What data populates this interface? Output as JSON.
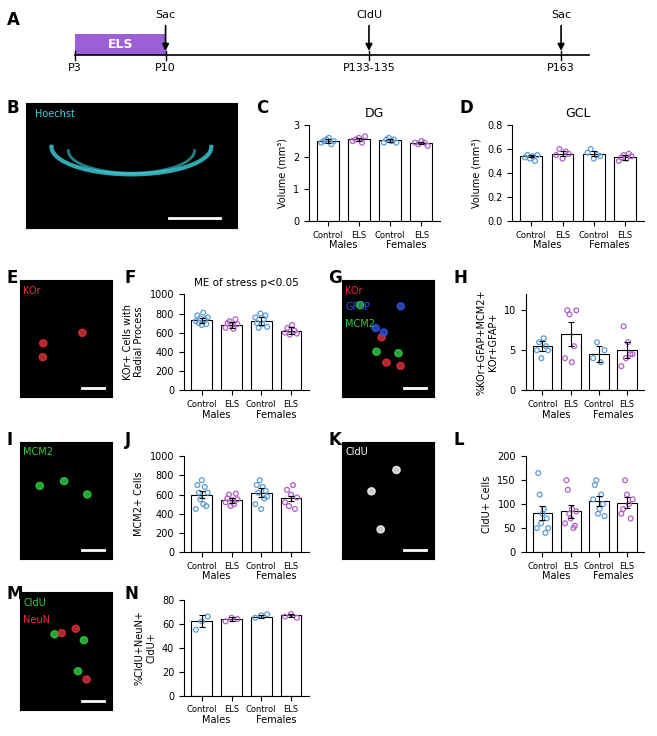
{
  "panel_labels": [
    "A",
    "B",
    "C",
    "D",
    "E",
    "F",
    "G",
    "H",
    "I",
    "J",
    "K",
    "L",
    "M",
    "N"
  ],
  "timeline": {
    "stage": {
      "text": "ELS",
      "color": "#9b5fd6"
    },
    "ticks": [
      "P3",
      "P10",
      "P133-135",
      "P163"
    ],
    "events": [
      {
        "text": "Sac",
        "at": "P10"
      },
      {
        "text": "CldU",
        "at": "P133-135"
      },
      {
        "text": "Sac",
        "at": "P163"
      }
    ]
  },
  "images": [
    {
      "channels": [
        {
          "text": "Hoechst",
          "color": "#3fd4e0"
        }
      ]
    },
    {
      "channels": [
        {
          "text": "KOr",
          "color": "#e0303a"
        }
      ]
    },
    {
      "channels": [
        {
          "text": "KOr",
          "color": "#e0303a"
        },
        {
          "text": "GFAP",
          "color": "#3050e0"
        },
        {
          "text": "MCM2",
          "color": "#30d040"
        }
      ]
    },
    {
      "channels": [
        {
          "text": "MCM2",
          "color": "#30d040"
        }
      ]
    },
    {
      "channels": [
        {
          "text": "CldU",
          "color": "#ffffff"
        }
      ]
    },
    {
      "channels": [
        {
          "text": "CldU",
          "color": "#30d040"
        },
        {
          "text": "NeuN",
          "color": "#e0303a"
        }
      ]
    }
  ],
  "chart_data": [
    {
      "type": "bar",
      "title": "DG",
      "ylabel": "Volume (mm³)",
      "categories": [
        "Control",
        "ELS",
        "Control",
        "ELS"
      ],
      "groups": [
        "Males",
        "Females"
      ],
      "values": [
        2.5,
        2.55,
        2.52,
        2.45
      ],
      "errors": [
        0.05,
        0.06,
        0.05,
        0.03
      ],
      "points": [
        [
          2.45,
          2.5,
          2.55,
          2.6,
          2.4,
          2.5
        ],
        [
          2.5,
          2.55,
          2.6,
          2.45,
          2.65
        ],
        [
          2.45,
          2.55,
          2.6,
          2.5,
          2.55,
          2.45
        ],
        [
          2.45,
          2.4,
          2.5,
          2.45,
          2.35
        ]
      ],
      "color": "#ffffff",
      "colors": [
        "#5b9bd5",
        "#b05fc8",
        "#5b9bd5",
        "#b05fc8"
      ],
      "ylim": [
        0,
        3
      ],
      "yticks": [
        0,
        1,
        2,
        3
      ]
    },
    {
      "type": "bar",
      "title": "GCL",
      "ylabel": "Volume (mm³)",
      "categories": [
        "Control",
        "ELS",
        "Control",
        "ELS"
      ],
      "groups": [
        "Males",
        "Females"
      ],
      "values": [
        0.54,
        0.56,
        0.56,
        0.53
      ],
      "errors": [
        0.01,
        0.02,
        0.02,
        0.02
      ],
      "points": [
        [
          0.53,
          0.55,
          0.52,
          0.54,
          0.5,
          0.55
        ],
        [
          0.55,
          0.6,
          0.52,
          0.58,
          0.56
        ],
        [
          0.57,
          0.6,
          0.52,
          0.55,
          0.54
        ],
        [
          0.5,
          0.53,
          0.55,
          0.52,
          0.56,
          0.54
        ]
      ],
      "color": "#ffffff",
      "colors": [
        "#5b9bd5",
        "#b05fc8",
        "#5b9bd5",
        "#b05fc8"
      ],
      "ylim": [
        0,
        0.8
      ],
      "yticks": [
        {
          "value": 0,
          "label": "0.0"
        },
        0.2,
        0.4,
        0.6,
        0.8
      ]
    },
    {
      "type": "bar",
      "annotation": "ME of stress p<0.05",
      "ylabel": "KOr+ Cells with\nRadial Process",
      "categories": [
        "Control",
        "ELS",
        "Control",
        "ELS"
      ],
      "groups": [
        "Males",
        "Females"
      ],
      "values": [
        730,
        680,
        720,
        620
      ],
      "errors": [
        25,
        30,
        40,
        35
      ],
      "points": [
        [
          720,
          780,
          700,
          750,
          680,
          810,
          740,
          690,
          760
        ],
        [
          650,
          700,
          720,
          680,
          640,
          740,
          690
        ],
        [
          760,
          700,
          650,
          800,
          690,
          740,
          780,
          660
        ],
        [
          600,
          650,
          580,
          680,
          620,
          590
        ]
      ],
      "color": "#ffffff",
      "colors": [
        "#5b9bd5",
        "#b05fc8",
        "#5b9bd5",
        "#b05fc8"
      ],
      "ylim": [
        0,
        1000
      ],
      "yticks": [
        0,
        200,
        400,
        600,
        800,
        1000
      ]
    },
    {
      "type": "bar",
      "ylabel": "%KOr+GFAP+MCM2+\nKOr+GFAP+",
      "categories": [
        "Control",
        "ELS",
        "Control",
        "ELS"
      ],
      "groups": [
        "Males",
        "Females"
      ],
      "values": [
        5.5,
        7,
        4.5,
        5
      ],
      "errors": [
        0.6,
        1.5,
        1,
        1
      ],
      "points": [
        [
          5,
          6,
          4,
          6.5,
          5.5,
          5
        ],
        [
          4,
          10,
          9.5,
          3.5,
          5.5,
          10
        ],
        [
          4,
          6,
          3.5,
          5
        ],
        [
          3,
          8,
          4,
          6,
          4.5,
          4.5
        ]
      ],
      "color": "#ffffff",
      "colors": [
        "#5b9bd5",
        "#b05fc8",
        "#5b9bd5",
        "#b05fc8"
      ],
      "ylim": [
        0,
        12
      ],
      "yticks": [
        0,
        5,
        10
      ]
    },
    {
      "type": "bar",
      "ylabel": "MCM2+ Cells",
      "categories": [
        "Control",
        "ELS",
        "Control",
        "ELS"
      ],
      "groups": [
        "Males",
        "Females"
      ],
      "values": [
        600,
        540,
        620,
        560
      ],
      "errors": [
        40,
        25,
        45,
        30
      ],
      "points": [
        [
          450,
          700,
          620,
          550,
          750,
          500,
          680,
          480,
          620
        ],
        [
          520,
          560,
          600,
          480,
          540,
          500,
          610,
          550
        ],
        [
          500,
          700,
          620,
          750,
          450,
          680,
          560,
          640,
          580
        ],
        [
          520,
          650,
          480,
          600,
          700,
          450,
          570
        ]
      ],
      "color": "#ffffff",
      "colors": [
        "#5b9bd5",
        "#b05fc8",
        "#5b9bd5",
        "#b05fc8"
      ],
      "ylim": [
        0,
        1000
      ],
      "yticks": [
        0,
        200,
        400,
        600,
        800,
        1000
      ]
    },
    {
      "type": "bar",
      "ylabel": "CldU+ Cells",
      "categories": [
        "Control",
        "ELS",
        "Control",
        "ELS"
      ],
      "groups": [
        "Males",
        "Females"
      ],
      "values": [
        82,
        85,
        107,
        103
      ],
      "errors": [
        15,
        13,
        10,
        12
      ],
      "points": [
        [
          50,
          165,
          120,
          60,
          80,
          90,
          40,
          70,
          50
        ],
        [
          60,
          150,
          130,
          80,
          70,
          90,
          50,
          55,
          85
        ],
        [
          110,
          140,
          150,
          80,
          90,
          120,
          100,
          75
        ],
        [
          80,
          90,
          150,
          120,
          100,
          70,
          110
        ]
      ],
      "color": "#ffffff",
      "colors": [
        "#5b9bd5",
        "#b05fc8",
        "#5b9bd5",
        "#b05fc8"
      ],
      "ylim": [
        0,
        200
      ],
      "yticks": [
        0,
        50,
        100,
        150,
        200
      ]
    },
    {
      "type": "bar",
      "ylabel": "%CldU+NeuN+\nCldU+",
      "categories": [
        "Control",
        "ELS",
        "Control",
        "ELS"
      ],
      "groups": [
        "Males",
        "Females"
      ],
      "values": [
        62,
        64,
        66,
        67
      ],
      "errors": [
        5,
        2,
        1,
        1
      ],
      "points": [
        [
          55,
          62,
          66
        ],
        [
          62,
          65,
          64
        ],
        [
          65,
          67,
          68
        ],
        [
          66,
          68,
          65
        ]
      ],
      "color": "#ffffff",
      "colors": [
        "#5b9bd5",
        "#b05fc8",
        "#5b9bd5",
        "#b05fc8"
      ],
      "ylim": [
        0,
        80
      ],
      "yticks": [
        0,
        20,
        40,
        60,
        80
      ]
    }
  ]
}
